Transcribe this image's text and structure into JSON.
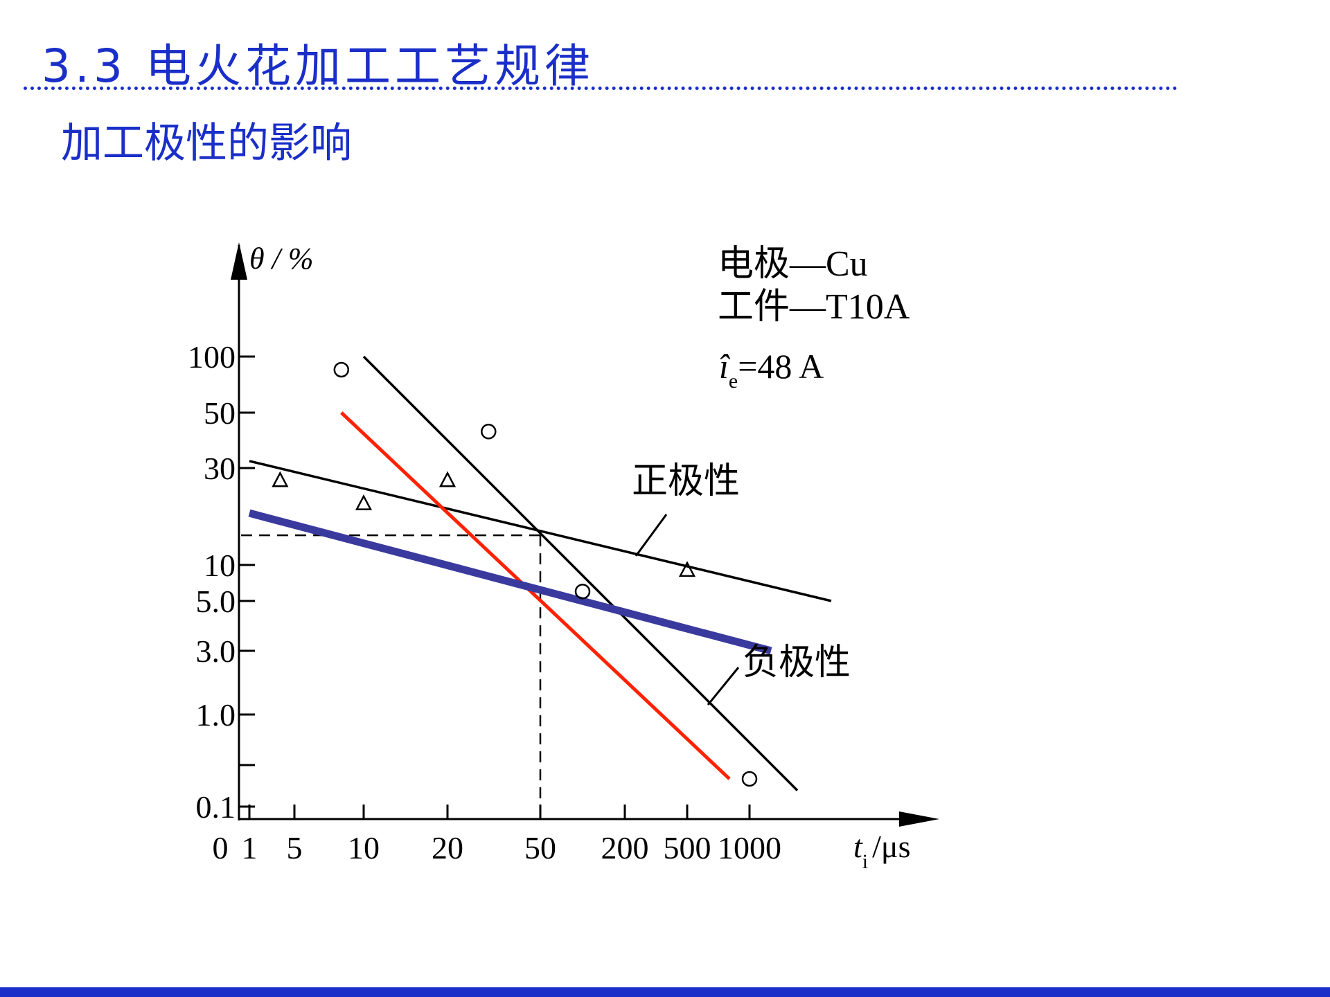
{
  "slide": {
    "title": "3.3 电火花加工工艺规律",
    "subtitle": "加工极性的影响"
  },
  "colors": {
    "title_blue": "#1a2ec8",
    "positive_line": "#000000",
    "negative_line": "#000000",
    "red_line": "#ff2200",
    "blue_line": "#3a3a9e"
  },
  "chart_data": {
    "type": "line",
    "y_axis_label": "θ / %",
    "x_axis_label_main": "t",
    "x_axis_label_sub": "i",
    "x_axis_label_unit": "/μs",
    "y_scale": "log",
    "x_scale": "log",
    "y_tick_labels": [
      "100",
      "50",
      "30",
      "10",
      "5.0",
      "3.0",
      "1.0",
      "0.1"
    ],
    "y_tick_values": [
      100,
      50,
      30,
      10,
      5,
      3,
      1,
      0.1
    ],
    "x_tick_labels": [
      "0",
      "1",
      "5",
      "10",
      "20",
      "50",
      "200",
      "500",
      "1000"
    ],
    "x_tick_values": [
      0,
      1,
      5,
      10,
      20,
      50,
      200,
      500,
      1000
    ],
    "legend_text": {
      "electrode": "电极—Cu",
      "workpiece": "工件—T10A",
      "current_symbol": "î",
      "current_sub": "e",
      "current_value": "=48 A"
    },
    "annotations": {
      "positive": "正极性",
      "negative": "负极性"
    },
    "reference_point": {
      "x": 50,
      "y": 14
    },
    "series": [
      {
        "name": "正极性",
        "style": "black",
        "x": [
          1,
          2000
        ],
        "y": [
          32,
          5
        ]
      },
      {
        "name": "负极性",
        "style": "black",
        "x": [
          10,
          1500
        ],
        "y": [
          100,
          0.15
        ]
      },
      {
        "style": "red",
        "x": [
          8,
          800
        ],
        "y": [
          50,
          0.2
        ]
      },
      {
        "style": "blue",
        "x": [
          1,
          1200
        ],
        "y": [
          18,
          3
        ]
      }
    ],
    "markers": {
      "circles": [
        {
          "x": 8,
          "y": 85
        },
        {
          "x": 30,
          "y": 42
        },
        {
          "x": 100,
          "y": 6
        },
        {
          "x": 1000,
          "y": 0.2
        }
      ],
      "triangles": [
        {
          "x": 3,
          "y": 26
        },
        {
          "x": 10,
          "y": 20
        },
        {
          "x": 20,
          "y": 26
        },
        {
          "x": 500,
          "y": 9
        }
      ]
    }
  }
}
